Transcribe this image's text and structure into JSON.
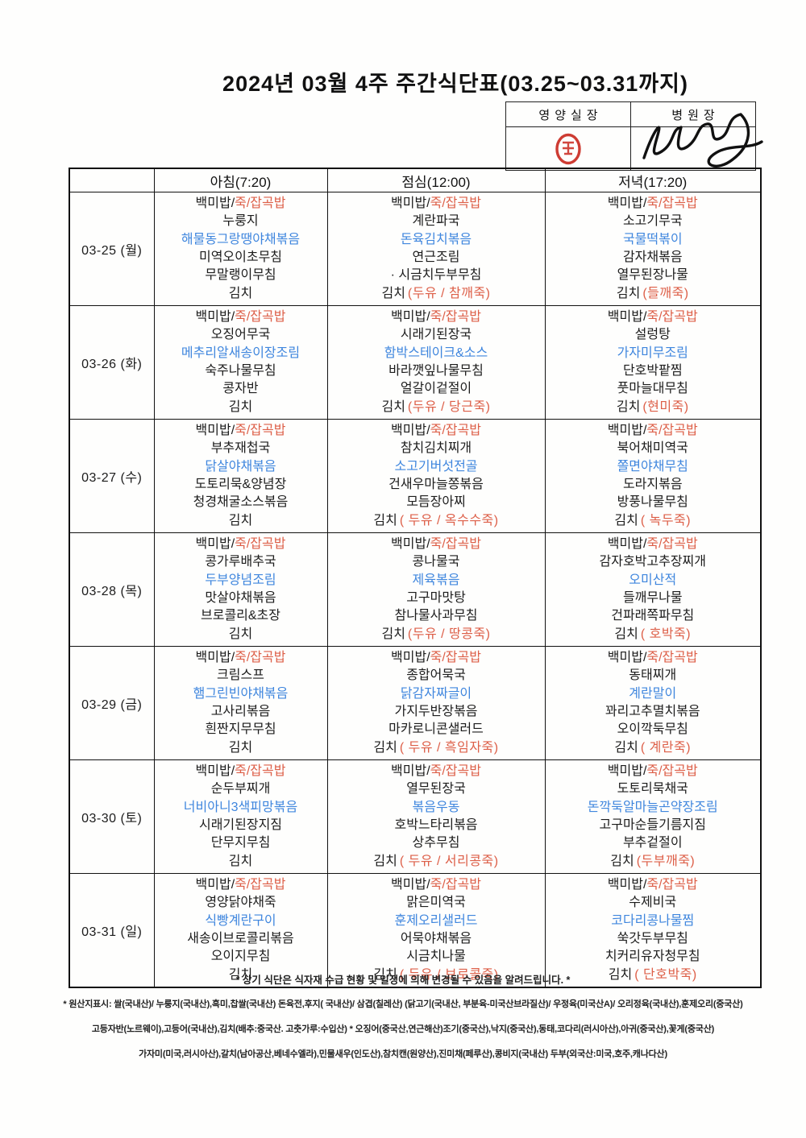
{
  "title": "2024년 03월 4주 주간식단표(03.25~03.31까지)",
  "approval": {
    "nutrition_label": "영양실장",
    "director_label": "병원장",
    "stamp_icon": "red-seal-stamp",
    "signature_icon": "handwritten-signature"
  },
  "table": {
    "headers": {
      "day": "",
      "breakfast": "아침(7:20)",
      "lunch": "점심(12:00)",
      "dinner": "저녁(17:20)"
    },
    "rice_line": {
      "black": "백미밥/",
      "red": "죽/잡곡밥"
    },
    "kimchi_label": "김치",
    "days": [
      {
        "date": "03-25 (월)",
        "breakfast": {
          "items": [
            "누룽지",
            "해물동그랑땡야채볶음",
            "미역오이초무침",
            "무말랭이무침"
          ],
          "kimchi_note": ""
        },
        "lunch": {
          "items": [
            "계란파국",
            "돈육김치볶음",
            "연근조림",
            "· 시금치두부무침"
          ],
          "kimchi_note": "(두유 / 참깨죽)"
        },
        "dinner": {
          "items": [
            "소고기무국",
            "국물떡볶이",
            "감자채볶음",
            "열무된장나물"
          ],
          "kimchi_note": "(들깨죽)"
        }
      },
      {
        "date": "03-26 (화)",
        "breakfast": {
          "items": [
            "오징어무국",
            "메추리알새송이장조림",
            "숙주나물무침",
            "콩자반"
          ],
          "kimchi_note": ""
        },
        "lunch": {
          "items": [
            "시래기된장국",
            "함박스테이크&소스",
            "바라깻잎나물무침",
            "얼갈이겉절이"
          ],
          "kimchi_note": "(두유 / 당근죽)"
        },
        "dinner": {
          "items": [
            "설렁탕",
            "가자미무조림",
            "단호박팥찜",
            "풋마늘대무침"
          ],
          "kimchi_note": "(현미죽)"
        }
      },
      {
        "date": "03-27 (수)",
        "breakfast": {
          "items": [
            "부추재첩국",
            "닭살야채볶음",
            "도토리묵&양념장",
            "청경채굴소스볶음"
          ],
          "kimchi_note": ""
        },
        "lunch": {
          "items": [
            "참치김치찌개",
            "소고기버섯전골",
            "건새우마늘쫑볶음",
            "모듬장아찌"
          ],
          "kimchi_note": "( 두유 / 옥수수죽)"
        },
        "dinner": {
          "items": [
            "북어채미역국",
            "쫄면야채무침",
            "도라지볶음",
            "방풍나물무침"
          ],
          "kimchi_note": "( 녹두죽)"
        }
      },
      {
        "date": "03-28 (목)",
        "breakfast": {
          "items": [
            "콩가루배추국",
            "두부양념조림",
            "맛살야채볶음",
            "브로콜리&초장"
          ],
          "kimchi_note": ""
        },
        "lunch": {
          "items": [
            "콩나물국",
            "제육볶음",
            "고구마맛탕",
            "참나물사과무침"
          ],
          "kimchi_note": "(두유 / 땅콩죽)"
        },
        "dinner": {
          "items": [
            "감자호박고추장찌개",
            "오미산적",
            "들깨무나물",
            "건파래쪽파무침"
          ],
          "kimchi_note": "( 호박죽)"
        }
      },
      {
        "date": "03-29 (금)",
        "breakfast": {
          "items": [
            "크림스프",
            "햄그린빈야채볶음",
            "고사리볶음",
            "흰짠지무무침"
          ],
          "kimchi_note": ""
        },
        "lunch": {
          "items": [
            "종합어묵국",
            "닭감자짜글이",
            "가지두반장볶음",
            "마카로니콘샐러드"
          ],
          "kimchi_note": "( 두유 / 흑임자죽)"
        },
        "dinner": {
          "items": [
            "동태찌개",
            "계란말이",
            "꽈리고추멸치볶음",
            "오이깍둑무침"
          ],
          "kimchi_note": "( 계란죽)"
        }
      },
      {
        "date": "03-30 (토)",
        "breakfast": {
          "items": [
            "순두부찌개",
            "너비아니3색피망볶음",
            "시래기된장지짐",
            "단무지무침"
          ],
          "kimchi_note": ""
        },
        "lunch": {
          "items": [
            "열무된장국",
            "볶음우동",
            "호박느타리볶음",
            "상추무침"
          ],
          "kimchi_note": "( 두유 / 서리콩죽)"
        },
        "dinner": {
          "items": [
            "도토리묵채국",
            "돈깍둑알마늘곤약장조림",
            "고구마순들기름지짐",
            "부추겉절이"
          ],
          "kimchi_note": "(두부깨죽)"
        }
      },
      {
        "date": "03-31 (일)",
        "breakfast": {
          "items": [
            "영양닭야채죽",
            "식빵계란구이",
            "새송이브로콜리볶음",
            "오이지무침"
          ],
          "kimchi_note": ""
        },
        "lunch": {
          "items": [
            "맑은미역국",
            "훈제오리샐러드",
            "어묵야채볶음",
            "시금치나물"
          ],
          "kimchi_note": "( 두유 / 브로콜죽)"
        },
        "dinner": {
          "items": [
            "수제비국",
            "코다리콩나물찜",
            "쑥갓두부무침",
            "치커리유자청무침"
          ],
          "kimchi_note": "( 단호박죽)"
        }
      }
    ]
  },
  "footer": {
    "change_note": "* 상기 식단은 식자재 수급 현황 및 일정에 의해 변경될 수 있음을 알려드립니다. *",
    "origin_lines": [
      "* 원산지표시: 쌀(국내산)/ 누룽지(국내산),흑미,찹쌀(국내산) 돈육전,후지( 국내산)/ 삼겹(칠레산) (닭고기(국내산, 부분육-미국산브라질산)/ 우정육(미국산A)/ 오리정육(국내산),훈제오리(중국산)",
      "고등자반(노르웨이),고등어(국내산),김치(배추:중국산. 고춧가루:수입산) * 오징어(중국산,연근해산)조기(중국산),낙지(중국산),동태,코다리(러시아산),아귀(중국산),꽃게(중국산)",
      "가자미(미국,러시아산),갈치(남아공산,베네수엘라),민물새우(인도산),참치캔(원양산),진미채(페루산),콩비지(국내산) 두부(외국산:미국,호주,캐나다산)"
    ]
  },
  "colors": {
    "main_dish_blue": "#3f86de",
    "stamp_red": "#dd5f48",
    "seal_red": "#c9271d"
  }
}
